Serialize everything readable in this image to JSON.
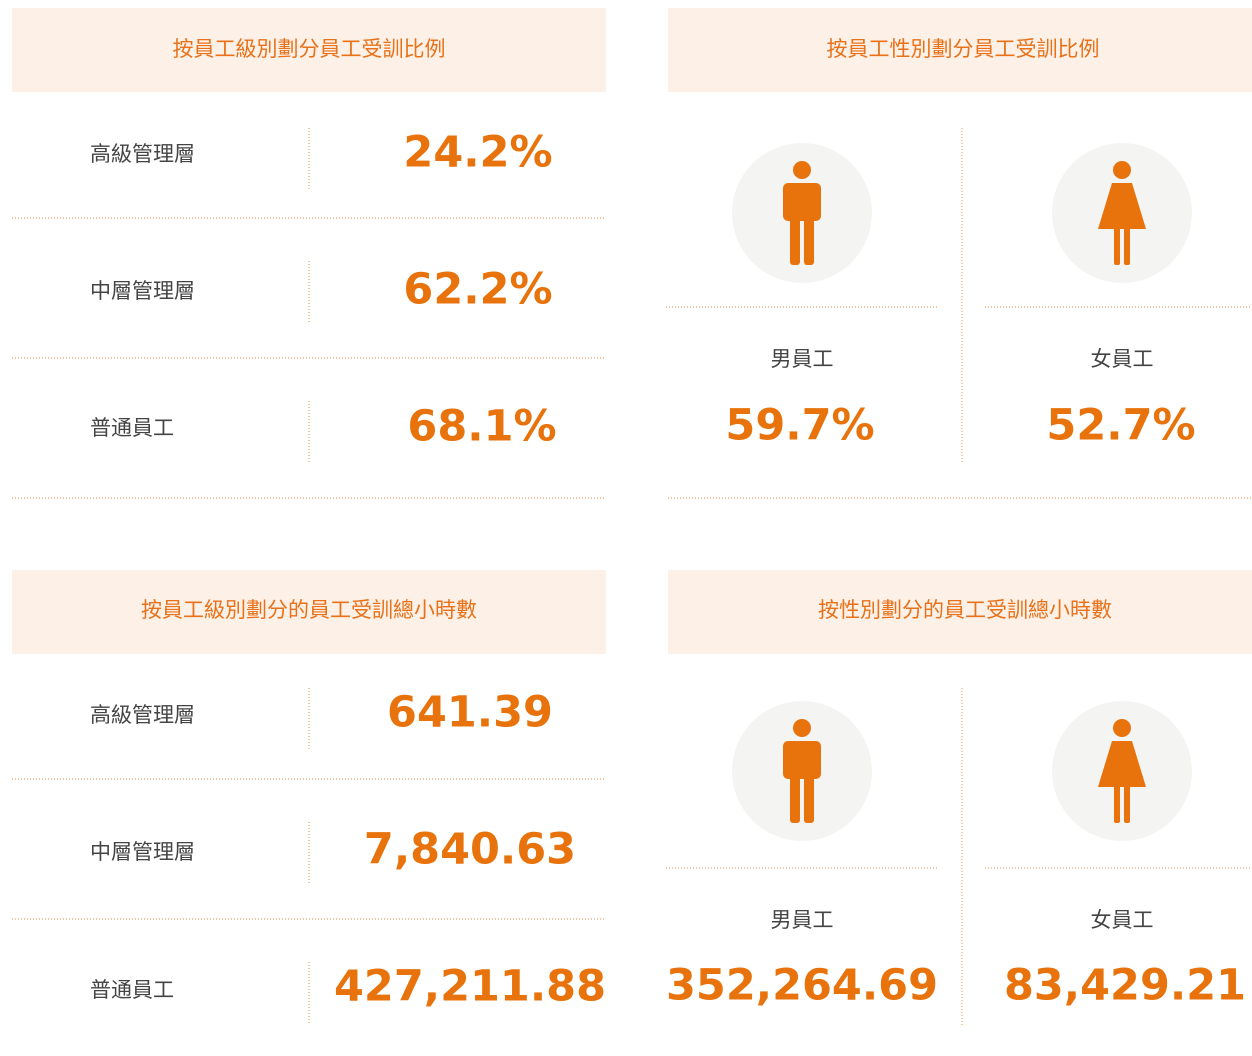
{
  "panels": [
    {
      "title": "按員工級別劃分員工受訓比例",
      "rows": [
        {
          "label": "高級管理層",
          "value": "24.2%"
        },
        {
          "label": "中層管理層",
          "value": "62.2%"
        },
        {
          "label": "普通員工",
          "value": "68.1%"
        }
      ]
    },
    {
      "title": "按員工性別劃分員工受訓比例",
      "items": [
        {
          "label": "男員工",
          "value": "59.7%"
        },
        {
          "label": "女員工",
          "value": "52.7%"
        }
      ]
    },
    {
      "title": "按員工級別劃分的員工受訓總小時數",
      "rows": [
        {
          "label": "高級管理層",
          "value": "641.39"
        },
        {
          "label": "中層管理層",
          "value": "7,840.63"
        },
        {
          "label": "普通員工",
          "value": "427,211.88"
        }
      ]
    },
    {
      "title": "按性別劃分的員工受訓總小時數",
      "items": [
        {
          "label": "男員工",
          "value": "352,264.69"
        },
        {
          "label": "女員工",
          "value": "83,429.21"
        }
      ]
    }
  ]
}
